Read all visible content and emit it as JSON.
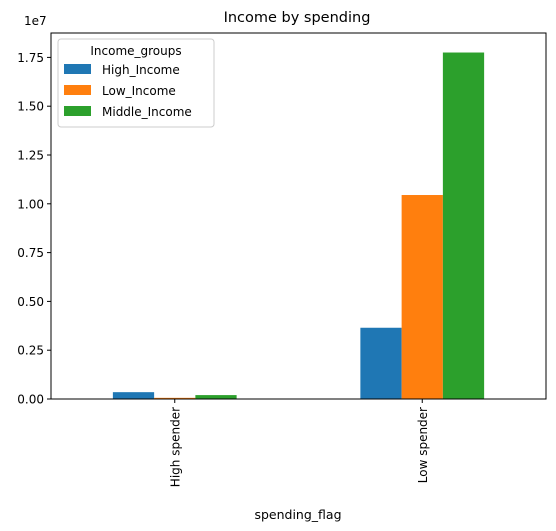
{
  "chart_data": {
    "type": "bar",
    "title": "Income by spending",
    "xlabel": "spending_flag",
    "ylabel": "",
    "offset_text": "1e7",
    "categories": [
      "High spender",
      "Low spender"
    ],
    "series": [
      {
        "name": "High_Income",
        "color": "#1f77b4",
        "values": [
          350000,
          3650000
        ]
      },
      {
        "name": "Low_Income",
        "color": "#ff7f0e",
        "values": [
          60000,
          10450000
        ]
      },
      {
        "name": "Middle_Income",
        "color": "#2ca02c",
        "values": [
          200000,
          17750000
        ]
      }
    ],
    "ylim": [
      0,
      18750000
    ],
    "yticks": [
      0,
      2500000,
      5000000,
      7500000,
      10000000,
      12500000,
      15000000,
      17500000
    ],
    "ytick_labels": [
      "0.00",
      "0.25",
      "0.50",
      "0.75",
      "1.00",
      "1.25",
      "1.50",
      "1.75"
    ],
    "legend": {
      "title": "Income_groups",
      "position": "top-left"
    },
    "grid": false
  }
}
